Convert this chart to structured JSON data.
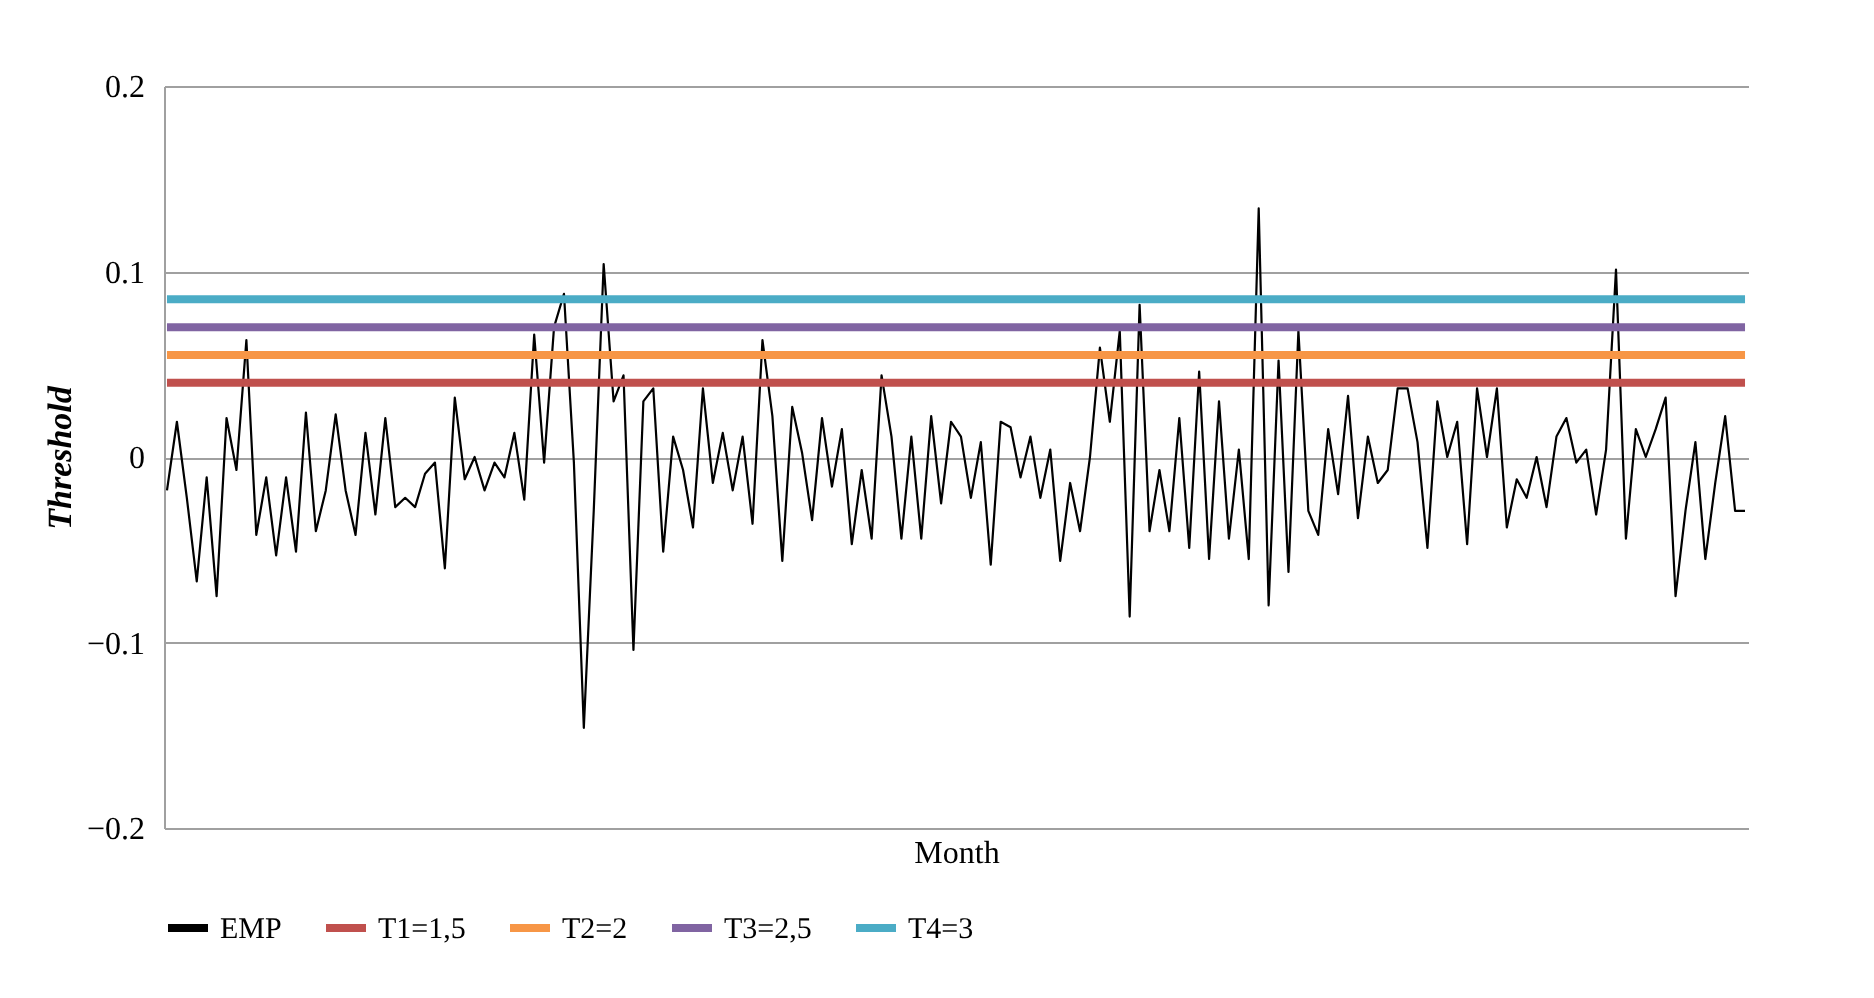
{
  "chart_data": {
    "type": "line",
    "xlabel": "Month",
    "ylabel": "Threshold",
    "categories": [
      null,
      null,
      null,
      null,
      null,
      null,
      null,
      null,
      null,
      null,
      null,
      null,
      null,
      null,
      null,
      null,
      null,
      null,
      null,
      null,
      null,
      null,
      null,
      null,
      null,
      null,
      null,
      null,
      null,
      null,
      null,
      null,
      null,
      null,
      null,
      null,
      null,
      null,
      null,
      null,
      null,
      null,
      null,
      null,
      null,
      null,
      null,
      null,
      null,
      null,
      null,
      null,
      null,
      null,
      null,
      null,
      null,
      null,
      null,
      null,
      null,
      null,
      null,
      null,
      null,
      null,
      null,
      null,
      null,
      null,
      null,
      null,
      null,
      null,
      null,
      null,
      null,
      null,
      null,
      null,
      null,
      null,
      null,
      null,
      null,
      null,
      null,
      null,
      null,
      null,
      null,
      null,
      null,
      null,
      null,
      null,
      null,
      null,
      null,
      null,
      null,
      null,
      null,
      null,
      null,
      null,
      null,
      null,
      null,
      null,
      null,
      null,
      null,
      null,
      null,
      null,
      null,
      null,
      null,
      null,
      null,
      null,
      null,
      null,
      null,
      null,
      null,
      null,
      null,
      null,
      null,
      null,
      null,
      null,
      null,
      null,
      null,
      null,
      null,
      null,
      null,
      null,
      null,
      null,
      null,
      null,
      null,
      null,
      null,
      null,
      null,
      null,
      null,
      null,
      null,
      null,
      null,
      null,
      null,
      null
    ],
    "series": [
      {
        "name": "EMP",
        "color": "#000000",
        "values": [
          -0.018,
          0.019,
          -0.022,
          -0.067,
          -0.011,
          -0.075,
          0.021,
          -0.007,
          0.063,
          -0.042,
          -0.011,
          -0.053,
          -0.011,
          -0.051,
          0.024,
          -0.04,
          -0.018,
          0.023,
          -0.018,
          -0.042,
          0.013,
          -0.031,
          0.021,
          -0.027,
          -0.022,
          -0.027,
          -0.009,
          -0.003,
          -0.06,
          0.032,
          -0.012,
          0,
          -0.018,
          -0.003,
          -0.011,
          0.013,
          -0.023,
          0.066,
          -0.003,
          0.07,
          0.088,
          -0.003,
          -0.146,
          -0.029,
          0.104,
          0.03,
          0.044,
          -0.104,
          0.03,
          0.037,
          -0.051,
          0.011,
          -0.007,
          -0.038,
          0.037,
          -0.014,
          0.013,
          -0.018,
          0.011,
          -0.036,
          0.063,
          0.022,
          -0.056,
          0.027,
          0.002,
          -0.034,
          0.021,
          -0.016,
          0.015,
          -0.047,
          -0.007,
          -0.044,
          0.044,
          0.011,
          -0.044,
          0.011,
          -0.044,
          0.022,
          -0.025,
          0.019,
          0.011,
          -0.022,
          0.008,
          -0.058,
          0.019,
          0.016,
          -0.011,
          0.011,
          -0.022,
          0.004,
          -0.056,
          -0.014,
          -0.04,
          0,
          0.059,
          0.019,
          0.068,
          -0.086,
          0.082,
          -0.04,
          -0.007,
          -0.04,
          0.021,
          -0.049,
          0.046,
          -0.055,
          0.03,
          -0.044,
          0.004,
          -0.055,
          0.134,
          -0.08,
          0.052,
          -0.062,
          0.068,
          -0.029,
          -0.042,
          0.015,
          -0.02,
          0.033,
          -0.033,
          0.011,
          -0.014,
          -0.007,
          0.037,
          0.037,
          0.008,
          -0.049,
          0.03,
          0,
          0.019,
          -0.047,
          0.037,
          0,
          0.037,
          -0.038,
          -0.012,
          -0.022,
          0,
          -0.027,
          0.011,
          0.021,
          -0.003,
          0.004,
          -0.031,
          0.004,
          0.101,
          -0.044,
          0.015,
          0,
          0.015,
          0.032,
          -0.075,
          -0.029,
          0.008,
          -0.055,
          -0.014,
          0.022,
          -0.029,
          -0.029
        ]
      },
      {
        "name": "T1=1,5",
        "color": "#c0504d",
        "values": [
          0.04,
          0.04,
          0.04,
          0.04,
          0.04,
          0.04,
          0.04,
          0.04,
          0.04,
          0.04,
          0.04,
          0.04,
          0.04,
          0.04,
          0.04,
          0.04,
          0.04,
          0.04,
          0.04,
          0.04,
          0.04,
          0.04,
          0.04,
          0.04,
          0.04,
          0.04,
          0.04,
          0.04,
          0.04,
          0.04,
          0.04,
          0.04,
          0.04,
          0.04,
          0.04,
          0.04,
          0.04,
          0.04,
          0.04,
          0.04,
          0.04,
          0.04,
          0.04,
          0.04,
          0.04,
          0.04,
          0.04,
          0.04,
          0.04,
          0.04,
          0.04,
          0.04,
          0.04,
          0.04,
          0.04,
          0.04,
          0.04,
          0.04,
          0.04,
          0.04,
          0.04,
          0.04,
          0.04,
          0.04,
          0.04,
          0.04,
          0.04,
          0.04,
          0.04,
          0.04,
          0.04,
          0.04,
          0.04,
          0.04,
          0.04,
          0.04,
          0.04,
          0.04,
          0.04,
          0.04,
          0.04,
          0.04,
          0.04,
          0.04,
          0.04,
          0.04,
          0.04,
          0.04,
          0.04,
          0.04,
          0.04,
          0.04,
          0.04,
          0.04,
          0.04,
          0.04,
          0.04,
          0.04,
          0.04,
          0.04,
          0.04,
          0.04,
          0.04,
          0.04,
          0.04,
          0.04,
          0.04,
          0.04,
          0.04,
          0.04,
          0.04,
          0.04,
          0.04,
          0.04,
          0.04,
          0.04,
          0.04,
          0.04,
          0.04,
          0.04,
          0.04,
          0.04,
          0.04,
          0.04,
          0.04,
          0.04,
          0.04,
          0.04,
          0.04,
          0.04,
          0.04,
          0.04,
          0.04,
          0.04,
          0.04,
          0.04,
          0.04,
          0.04,
          0.04,
          0.04,
          0.04,
          0.04,
          0.04,
          0.04,
          0.04,
          0.04,
          0.04,
          0.04,
          0.04,
          0.04,
          0.04,
          0.04,
          0.04,
          0.04,
          0.04,
          0.04,
          0.04,
          0.04,
          0.04,
          0.04
        ]
      },
      {
        "name": "T2=2",
        "color": "#f79646",
        "values": [
          0.055,
          0.055,
          0.055,
          0.055,
          0.055,
          0.055,
          0.055,
          0.055,
          0.055,
          0.055,
          0.055,
          0.055,
          0.055,
          0.055,
          0.055,
          0.055,
          0.055,
          0.055,
          0.055,
          0.055,
          0.055,
          0.055,
          0.055,
          0.055,
          0.055,
          0.055,
          0.055,
          0.055,
          0.055,
          0.055,
          0.055,
          0.055,
          0.055,
          0.055,
          0.055,
          0.055,
          0.055,
          0.055,
          0.055,
          0.055,
          0.055,
          0.055,
          0.055,
          0.055,
          0.055,
          0.055,
          0.055,
          0.055,
          0.055,
          0.055,
          0.055,
          0.055,
          0.055,
          0.055,
          0.055,
          0.055,
          0.055,
          0.055,
          0.055,
          0.055,
          0.055,
          0.055,
          0.055,
          0.055,
          0.055,
          0.055,
          0.055,
          0.055,
          0.055,
          0.055,
          0.055,
          0.055,
          0.055,
          0.055,
          0.055,
          0.055,
          0.055,
          0.055,
          0.055,
          0.055,
          0.055,
          0.055,
          0.055,
          0.055,
          0.055,
          0.055,
          0.055,
          0.055,
          0.055,
          0.055,
          0.055,
          0.055,
          0.055,
          0.055,
          0.055,
          0.055,
          0.055,
          0.055,
          0.055,
          0.055,
          0.055,
          0.055,
          0.055,
          0.055,
          0.055,
          0.055,
          0.055,
          0.055,
          0.055,
          0.055,
          0.055,
          0.055,
          0.055,
          0.055,
          0.055,
          0.055,
          0.055,
          0.055,
          0.055,
          0.055,
          0.055,
          0.055,
          0.055,
          0.055,
          0.055,
          0.055,
          0.055,
          0.055,
          0.055,
          0.055,
          0.055,
          0.055,
          0.055,
          0.055,
          0.055,
          0.055,
          0.055,
          0.055,
          0.055,
          0.055,
          0.055,
          0.055,
          0.055,
          0.055,
          0.055,
          0.055,
          0.055,
          0.055,
          0.055,
          0.055,
          0.055,
          0.055,
          0.055,
          0.055,
          0.055,
          0.055,
          0.055,
          0.055,
          0.055,
          0.055
        ]
      },
      {
        "name": "T3=2,5",
        "color": "#8064a2",
        "values": [
          0.07,
          0.07,
          0.07,
          0.07,
          0.07,
          0.07,
          0.07,
          0.07,
          0.07,
          0.07,
          0.07,
          0.07,
          0.07,
          0.07,
          0.07,
          0.07,
          0.07,
          0.07,
          0.07,
          0.07,
          0.07,
          0.07,
          0.07,
          0.07,
          0.07,
          0.07,
          0.07,
          0.07,
          0.07,
          0.07,
          0.07,
          0.07,
          0.07,
          0.07,
          0.07,
          0.07,
          0.07,
          0.07,
          0.07,
          0.07,
          0.07,
          0.07,
          0.07,
          0.07,
          0.07,
          0.07,
          0.07,
          0.07,
          0.07,
          0.07,
          0.07,
          0.07,
          0.07,
          0.07,
          0.07,
          0.07,
          0.07,
          0.07,
          0.07,
          0.07,
          0.07,
          0.07,
          0.07,
          0.07,
          0.07,
          0.07,
          0.07,
          0.07,
          0.07,
          0.07,
          0.07,
          0.07,
          0.07,
          0.07,
          0.07,
          0.07,
          0.07,
          0.07,
          0.07,
          0.07,
          0.07,
          0.07,
          0.07,
          0.07,
          0.07,
          0.07,
          0.07,
          0.07,
          0.07,
          0.07,
          0.07,
          0.07,
          0.07,
          0.07,
          0.07,
          0.07,
          0.07,
          0.07,
          0.07,
          0.07,
          0.07,
          0.07,
          0.07,
          0.07,
          0.07,
          0.07,
          0.07,
          0.07,
          0.07,
          0.07,
          0.07,
          0.07,
          0.07,
          0.07,
          0.07,
          0.07,
          0.07,
          0.07,
          0.07,
          0.07,
          0.07,
          0.07,
          0.07,
          0.07,
          0.07,
          0.07,
          0.07,
          0.07,
          0.07,
          0.07,
          0.07,
          0.07,
          0.07,
          0.07,
          0.07,
          0.07,
          0.07,
          0.07,
          0.07,
          0.07,
          0.07,
          0.07,
          0.07,
          0.07,
          0.07,
          0.07,
          0.07,
          0.07,
          0.07,
          0.07,
          0.07,
          0.07,
          0.07,
          0.07,
          0.07,
          0.07,
          0.07,
          0.07,
          0.07,
          0.07
        ]
      },
      {
        "name": "T4=3",
        "color": "#4bacc6",
        "values": [
          0.085,
          0.085,
          0.085,
          0.085,
          0.085,
          0.085,
          0.085,
          0.085,
          0.085,
          0.085,
          0.085,
          0.085,
          0.085,
          0.085,
          0.085,
          0.085,
          0.085,
          0.085,
          0.085,
          0.085,
          0.085,
          0.085,
          0.085,
          0.085,
          0.085,
          0.085,
          0.085,
          0.085,
          0.085,
          0.085,
          0.085,
          0.085,
          0.085,
          0.085,
          0.085,
          0.085,
          0.085,
          0.085,
          0.085,
          0.085,
          0.085,
          0.085,
          0.085,
          0.085,
          0.085,
          0.085,
          0.085,
          0.085,
          0.085,
          0.085,
          0.085,
          0.085,
          0.085,
          0.085,
          0.085,
          0.085,
          0.085,
          0.085,
          0.085,
          0.085,
          0.085,
          0.085,
          0.085,
          0.085,
          0.085,
          0.085,
          0.085,
          0.085,
          0.085,
          0.085,
          0.085,
          0.085,
          0.085,
          0.085,
          0.085,
          0.085,
          0.085,
          0.085,
          0.085,
          0.085,
          0.085,
          0.085,
          0.085,
          0.085,
          0.085,
          0.085,
          0.085,
          0.085,
          0.085,
          0.085,
          0.085,
          0.085,
          0.085,
          0.085,
          0.085,
          0.085,
          0.085,
          0.085,
          0.085,
          0.085,
          0.085,
          0.085,
          0.085,
          0.085,
          0.085,
          0.085,
          0.085,
          0.085,
          0.085,
          0.085,
          0.085,
          0.085,
          0.085,
          0.085,
          0.085,
          0.085,
          0.085,
          0.085,
          0.085,
          0.085,
          0.085,
          0.085,
          0.085,
          0.085,
          0.085,
          0.085,
          0.085,
          0.085,
          0.085,
          0.085,
          0.085,
          0.085,
          0.085,
          0.085,
          0.085,
          0.085,
          0.085,
          0.085,
          0.085,
          0.085,
          0.085,
          0.085,
          0.085,
          0.085,
          0.085,
          0.085,
          0.085,
          0.085,
          0.085,
          0.085,
          0.085,
          0.085,
          0.085,
          0.085,
          0.085,
          0.085,
          0.085,
          0.085,
          0.085,
          0.085
        ]
      }
    ],
    "ylim": [
      -0.2,
      0.2
    ],
    "yticks": [
      -0.2,
      -0.1,
      0,
      0.1,
      0.2
    ],
    "grid": "y",
    "legend": "bottom",
    "tick_labels": "y",
    "line_style": "solid",
    "marker": "none"
  }
}
